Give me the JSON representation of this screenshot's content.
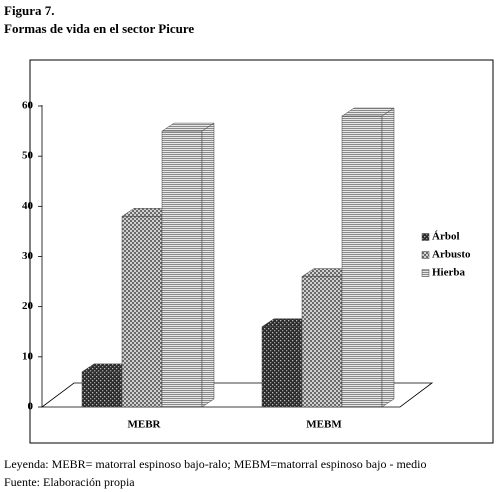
{
  "chart_data": {
    "type": "bar3d",
    "title": "Figura 7.",
    "subtitle": "Formas de vida en el sector  Picure",
    "categories": [
      "MEBR",
      "MEBM"
    ],
    "series": [
      {
        "name": "Árbol",
        "color": "#2b2b2b",
        "pattern": "cross",
        "values": [
          7,
          16
        ]
      },
      {
        "name": "Arbusto",
        "color": "#6a6a6a",
        "pattern": "checker",
        "values": [
          38,
          26
        ]
      },
      {
        "name": "Hierba",
        "color": "#8a8a8a",
        "pattern": "lines",
        "values": [
          55,
          58
        ]
      }
    ],
    "ylim": [
      0,
      60
    ],
    "yticks": [
      0,
      10,
      20,
      30,
      40,
      50,
      60
    ],
    "legend": "right",
    "annotations": [
      "Leyenda: MEBR= matorral espinoso bajo-ralo; MEBM=matorral espinoso bajo - medio",
      "Fuente: Elaboración propia"
    ]
  }
}
